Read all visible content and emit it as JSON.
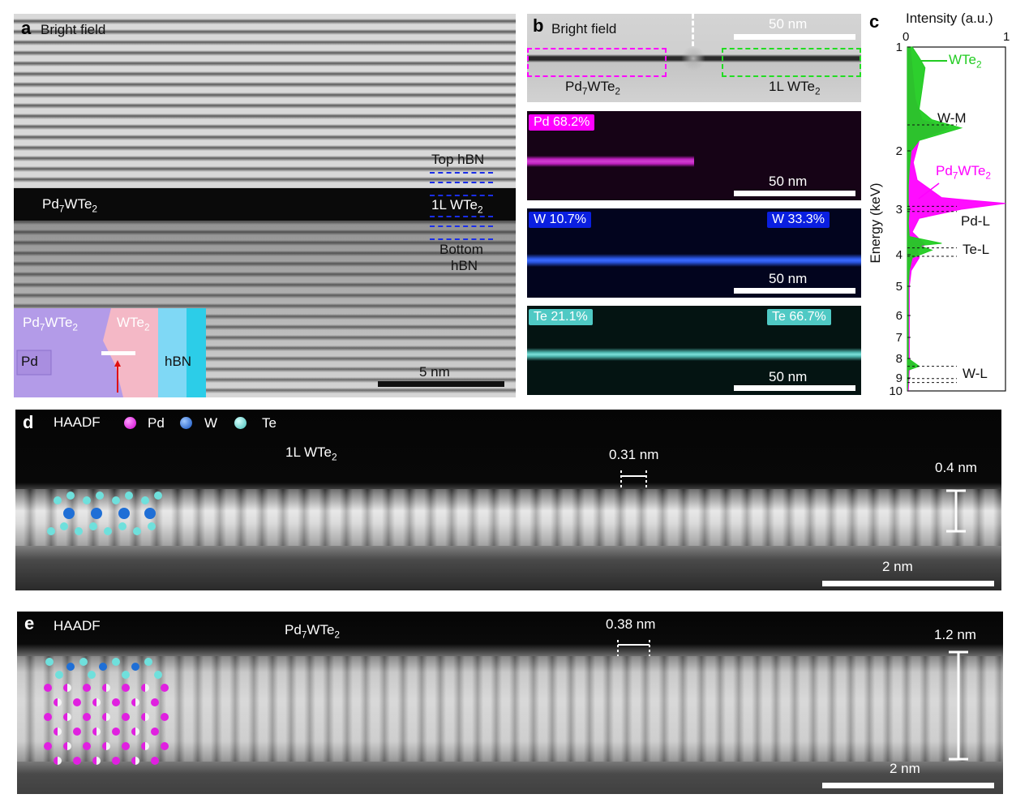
{
  "panel_a": {
    "letter": "a",
    "title": "Bright field",
    "material": "Pd",
    "material_sub": "7",
    "material_mid": "WTe",
    "material_sub2": "2",
    "top_hbn": "Top hBN",
    "wte2_1l_main": "1L WTe",
    "wte2_1l_sub": "2",
    "bottom_hbn_1": "Bottom",
    "bottom_hbn_2": "hBN",
    "scale": "5 nm",
    "inset": {
      "pd7wte2_main": "Pd",
      "pd7wte2_sub": "7",
      "pd7wte2_mid": "WTe",
      "pd7wte2_sub2": "2",
      "wte2_main": "WTe",
      "wte2_sub": "2",
      "pd": "Pd",
      "hbn": "hBN"
    }
  },
  "panel_b": {
    "letter": "b",
    "title": "Bright field",
    "scale": "50 nm",
    "left_main": "Pd",
    "left_sub": "7",
    "left_mid": "WTe",
    "left_sub2": "2",
    "right_main": "1L WTe",
    "right_sub": "2",
    "pd_badge": "Pd 68.2%",
    "w_badge_left": "W 10.7%",
    "w_badge_right": "W 33.3%",
    "te_badge_left": "Te 21.1%",
    "te_badge_right": "Te 66.7%",
    "pd_color": "#ff00ff",
    "w_color": "#0a1fe0",
    "te_color": "#4fc9c4"
  },
  "panel_c": {
    "letter": "c",
    "xlabel": "Intensity (a.u.)",
    "ylabel": "Energy (keV)",
    "xticks": [
      "0",
      "1"
    ],
    "yticks": [
      "1",
      "2",
      "3",
      "4",
      "5",
      "6",
      "7",
      "8",
      "9",
      "10"
    ],
    "label_wte2_main": "WTe",
    "label_wte2_sub": "2",
    "label_pd7wte2_main": "Pd",
    "label_pd7wte2_sub": "7",
    "label_pd7wte2_mid": "WTe",
    "label_pd7wte2_sub2": "2",
    "peak_wm": "W-M",
    "peak_pdl": "Pd-L",
    "peak_tel": "Te-L",
    "peak_wl": "W-L",
    "green": "#22cc22",
    "magenta": "#ff00ff"
  },
  "chart_data": {
    "type": "area",
    "title": "",
    "xlabel": "Intensity (a.u.)",
    "ylabel": "Energy (keV)",
    "xlim": [
      0,
      1
    ],
    "ylim": [
      1,
      10
    ],
    "series": [
      {
        "name": "WTe2",
        "energy": [
          1.0,
          1.1,
          1.2,
          1.4,
          1.6,
          1.7,
          1.78,
          1.85,
          1.9,
          2.0,
          2.3,
          2.6,
          2.9,
          3.0,
          3.3,
          3.6,
          3.75,
          3.8,
          3.9,
          4.1,
          4.5,
          5.0,
          6.0,
          7.0,
          8.0,
          8.4,
          8.6,
          9.0,
          10.0
        ],
        "intensity": [
          0.05,
          0.12,
          0.18,
          0.15,
          0.12,
          0.25,
          0.55,
          0.3,
          0.12,
          0.04,
          0.02,
          0.01,
          0.01,
          0.02,
          0.01,
          0.02,
          0.35,
          0.12,
          0.25,
          0.05,
          0.02,
          0.01,
          0.01,
          0.01,
          0.01,
          0.12,
          0.01,
          0.01,
          0.0
        ]
      },
      {
        "name": "Pd7WTe2",
        "energy": [
          1.0,
          1.2,
          1.5,
          1.7,
          1.78,
          1.9,
          2.2,
          2.5,
          2.8,
          2.84,
          2.9,
          3.0,
          3.2,
          3.5,
          3.78,
          3.9,
          4.1,
          4.5,
          5.0,
          6.0,
          8.0,
          8.4,
          8.6,
          10.0
        ],
        "intensity": [
          0.03,
          0.05,
          0.08,
          0.15,
          0.42,
          0.12,
          0.06,
          0.1,
          0.35,
          0.6,
          1.0,
          0.55,
          0.12,
          0.05,
          0.18,
          0.1,
          0.12,
          0.04,
          0.02,
          0.02,
          0.02,
          0.08,
          0.02,
          0.01
        ]
      }
    ]
  },
  "panel_d": {
    "letter": "d",
    "title": "HAADF",
    "legend_pd": "Pd",
    "legend_w": "W",
    "legend_te": "Te",
    "material_main": "1L WTe",
    "material_sub": "2",
    "spacing": "0.31 nm",
    "thickness": "0.4 nm",
    "scale": "2 nm"
  },
  "panel_e": {
    "letter": "e",
    "title": "HAADF",
    "material_main": "Pd",
    "material_sub": "7",
    "material_mid": "WTe",
    "material_sub2": "2",
    "spacing": "0.38 nm",
    "thickness": "1.2 nm",
    "scale": "2 nm"
  }
}
